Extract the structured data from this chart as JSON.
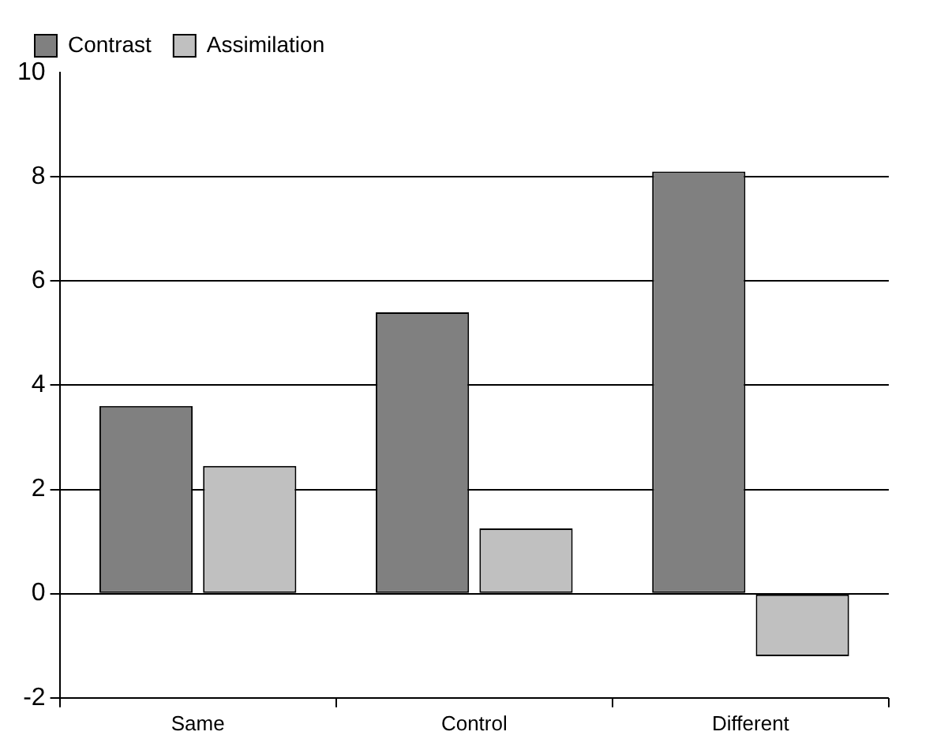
{
  "chart_data": {
    "type": "bar",
    "categories": [
      "Same",
      "Control",
      "Different"
    ],
    "series": [
      {
        "name": "Contrast",
        "color": "#808080",
        "values": [
          3.6,
          5.4,
          8.1
        ]
      },
      {
        "name": "Assimilation",
        "color": "#c0c0c0",
        "values": [
          2.45,
          1.25,
          -1.2
        ]
      }
    ],
    "ylim": [
      -2,
      10
    ],
    "yticks": [
      -2,
      0,
      2,
      4,
      6,
      8,
      10
    ],
    "grid": "y",
    "legend": "top left"
  }
}
